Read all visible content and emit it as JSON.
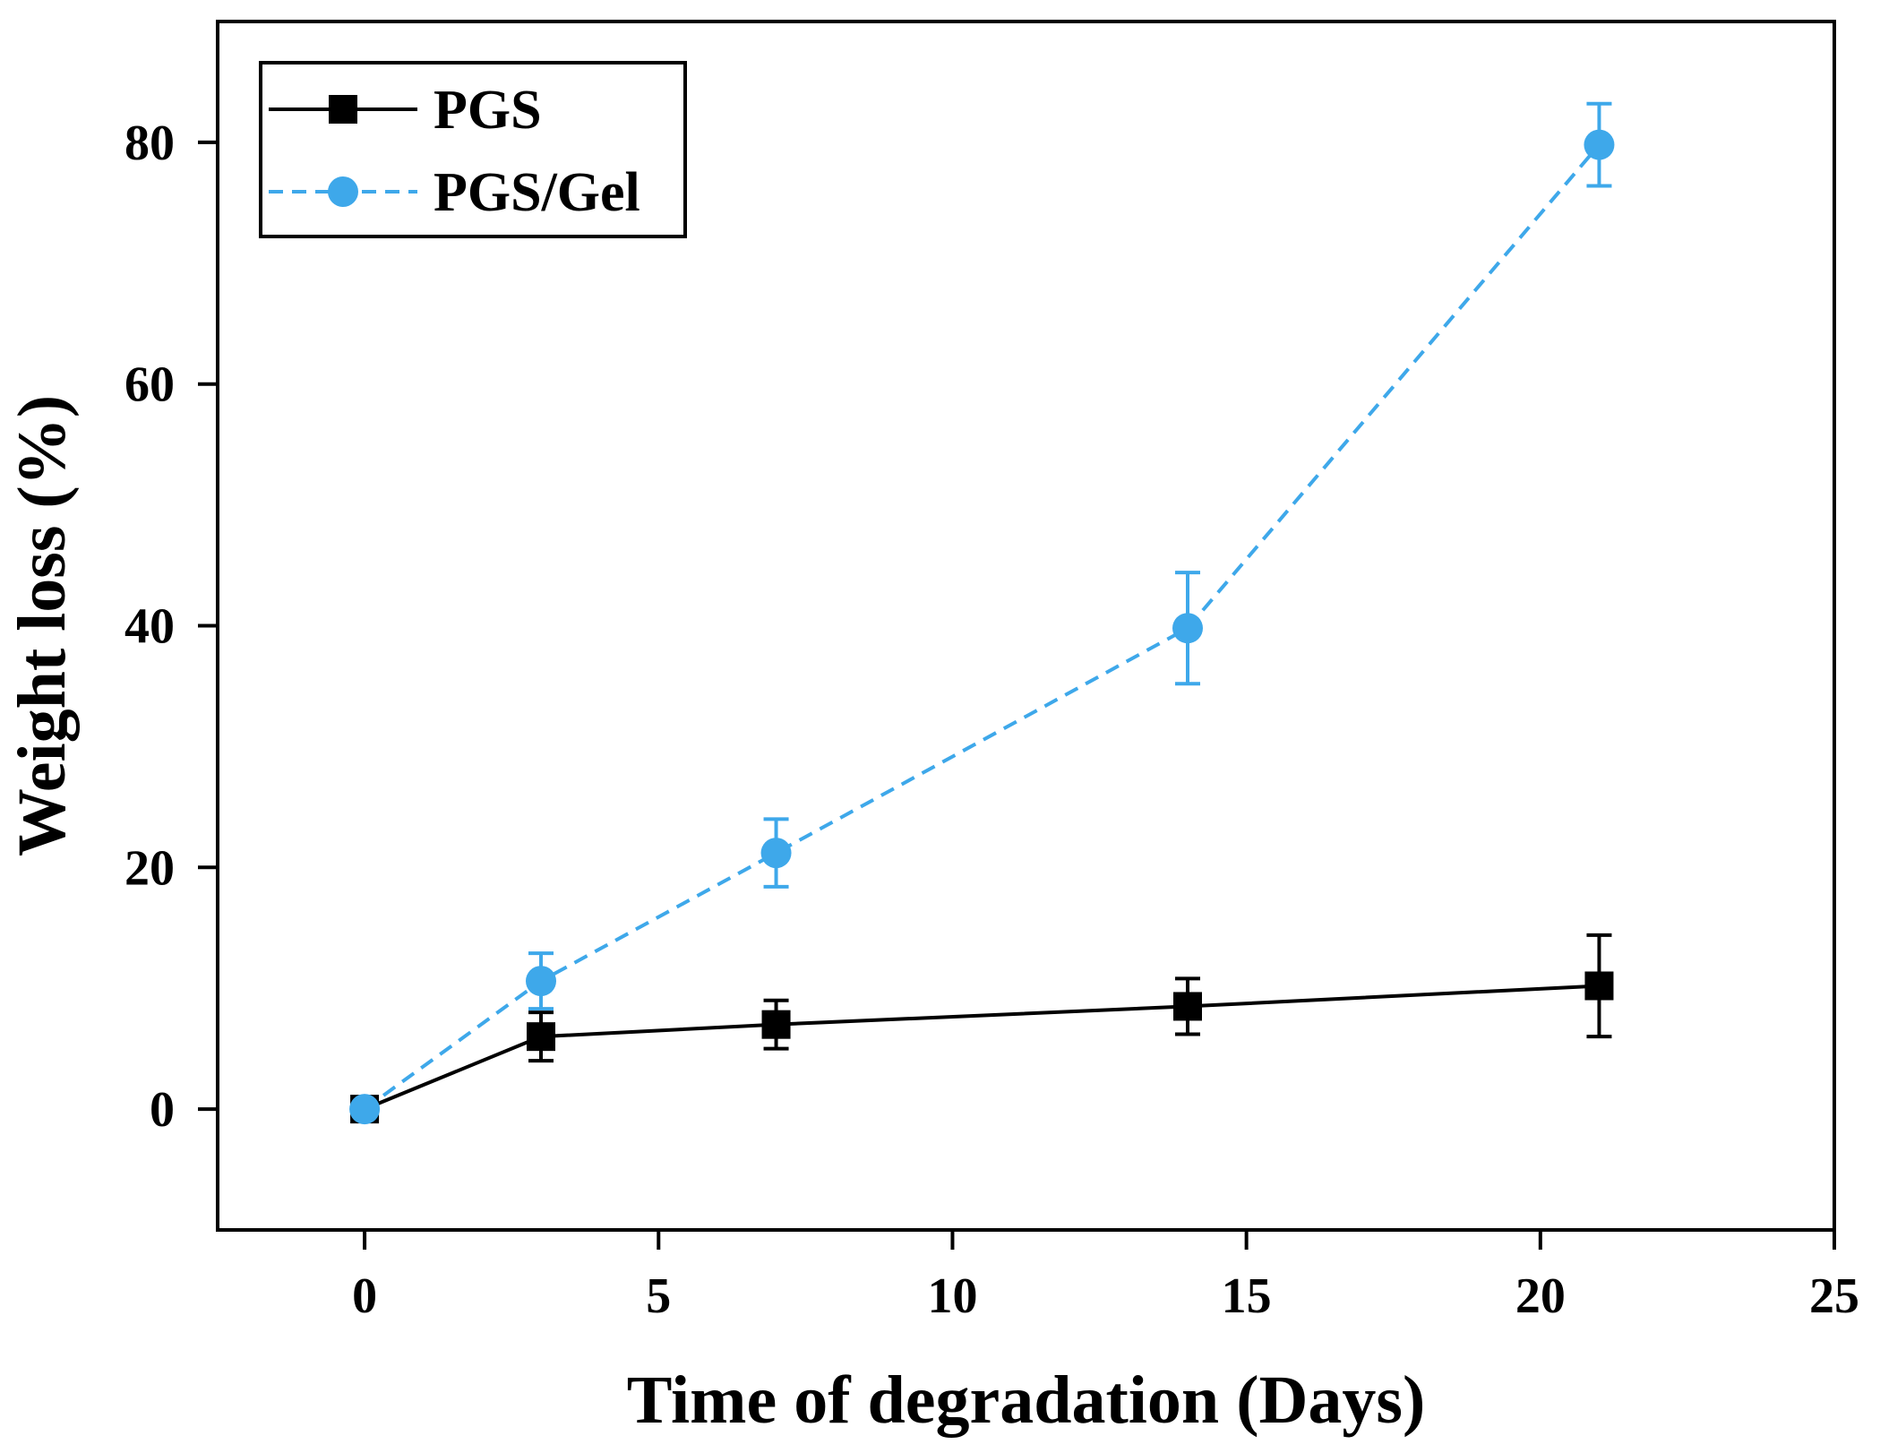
{
  "chart_data": {
    "type": "line",
    "title": "",
    "xlabel": "Time of degradation (Days)",
    "ylabel": "Weight loss (%)",
    "xlim": [
      -2.5,
      25
    ],
    "ylim": [
      -10,
      90
    ],
    "xticks": [
      0,
      5,
      10,
      15,
      20,
      25
    ],
    "yticks": [
      0,
      20,
      40,
      60,
      80
    ],
    "grid": false,
    "legend_position": "top-left",
    "series": [
      {
        "name": "PGS",
        "color": "#000000",
        "marker": "square",
        "line_style": "solid",
        "x": [
          0,
          3,
          7,
          14,
          21
        ],
        "values": [
          0,
          6,
          7,
          8.5,
          10.2
        ],
        "errors": [
          0,
          2,
          2,
          2.3,
          4.2
        ]
      },
      {
        "name": "PGS/Gel",
        "color": "#3ea8ea",
        "marker": "circle",
        "line_style": "dashed",
        "x": [
          0,
          3,
          7,
          14,
          21
        ],
        "values": [
          0,
          10.6,
          21.2,
          39.8,
          79.8
        ],
        "errors": [
          0,
          2.3,
          2.8,
          4.6,
          3.4
        ]
      }
    ]
  }
}
